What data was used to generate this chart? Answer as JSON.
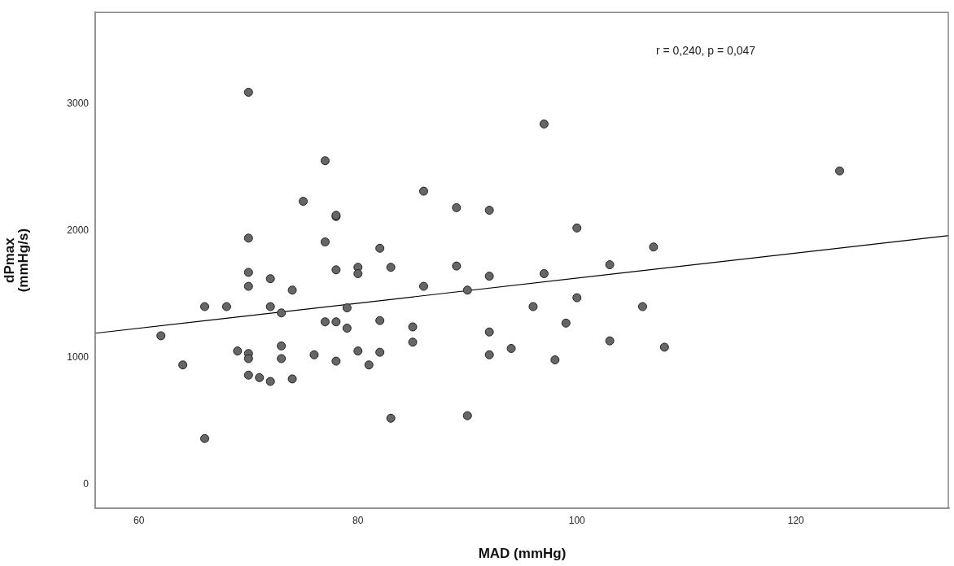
{
  "chart_data": {
    "type": "scatter",
    "xlabel": "MAD (mmHg)",
    "ylabel": "dPmax\n(mmHg/s)",
    "xlim": [
      56,
      134
    ],
    "xticks": [
      60,
      80,
      100,
      120
    ],
    "ylim": [
      -190,
      3720
    ],
    "yticks": [
      0,
      1000,
      2000,
      3000
    ],
    "grid": false,
    "legend": false,
    "marker": "circle",
    "annotations": [
      "r = 0,240, p = 0,047"
    ],
    "series": [
      {
        "color": "#666666",
        "x": [
          62,
          64,
          66,
          66,
          68,
          69,
          70,
          70,
          70,
          70,
          70,
          70,
          70,
          71,
          72,
          72,
          72,
          73,
          73,
          73,
          74,
          74,
          75,
          76,
          77,
          77,
          77,
          78,
          78,
          78,
          78,
          78,
          79,
          79,
          80,
          80,
          80,
          81,
          82,
          82,
          82,
          83,
          83,
          85,
          85,
          86,
          86,
          89,
          89,
          90,
          90,
          92,
          92,
          92,
          92,
          94,
          96,
          97,
          97,
          98,
          99,
          100,
          100,
          103,
          103,
          106,
          107,
          108,
          124
        ],
        "values": [
          1170,
          940,
          1400,
          360,
          1400,
          1050,
          3090,
          1940,
          1670,
          1560,
          1030,
          990,
          860,
          840,
          1400,
          1620,
          810,
          1350,
          1090,
          990,
          1530,
          830,
          2230,
          1020,
          2550,
          1910,
          1280,
          2110,
          2120,
          1690,
          1280,
          970,
          1390,
          1230,
          1710,
          1660,
          1050,
          940,
          1860,
          1290,
          1040,
          1710,
          520,
          1240,
          1120,
          2310,
          1560,
          2180,
          1720,
          1530,
          540,
          2160,
          1640,
          1200,
          1020,
          1070,
          1400,
          2840,
          1660,
          980,
          1270,
          2020,
          1470,
          1730,
          1130,
          1400,
          1870,
          1080,
          2470
        ]
      },
      {
        "type": "line",
        "color": "#000000",
        "marker": "none",
        "x": [
          56,
          134
        ],
        "values": [
          1190,
          1960
        ]
      }
    ]
  }
}
